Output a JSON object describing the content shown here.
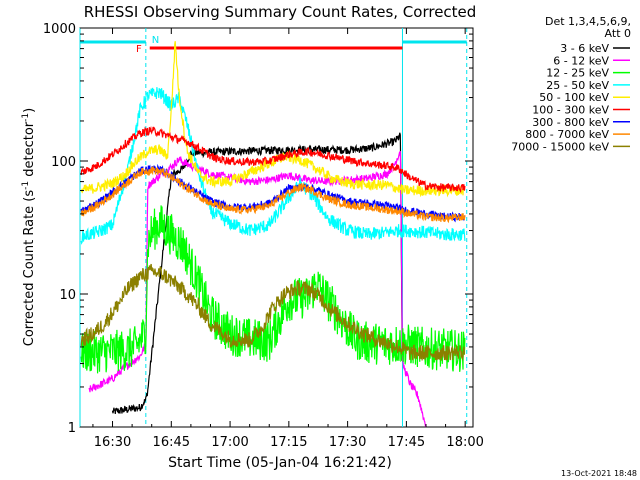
{
  "chart_data": {
    "type": "line",
    "title": "RHESSI Observing Summary Count Rates, Corrected",
    "xlabel": "Start Time (05-Jan-04 16:21:42)",
    "ylabel_main": "Corrected Count Rate (s",
    "ylabel_sup1": "-1",
    "ylabel_mid": " detector",
    "ylabel_sup2": "-1",
    "ylabel_end": ")",
    "yscale": "log",
    "ylim": [
      1,
      1000
    ],
    "xlim": [
      "16:21:42",
      "18:02:00"
    ],
    "xlim_minutes": [
      981.7,
      1082.0
    ],
    "x_ticks": [
      "16:30",
      "16:45",
      "17:00",
      "17:15",
      "17:30",
      "17:45",
      "18:00"
    ],
    "x_tick_minutes": [
      990,
      1005,
      1020,
      1035,
      1050,
      1065,
      1080
    ],
    "y_ticks": [
      "1",
      "10",
      "100",
      "1000"
    ],
    "y_tick_values": [
      1,
      10,
      100,
      1000
    ],
    "legend_placement": "right",
    "legend_header_line1": "Det 1,3,4,5,6,9,",
    "legend_header_line2": "Att 0",
    "timestamp": "13-Oct-2021 18:48",
    "flags": [
      {
        "label": "F",
        "color": "#ff0000",
        "start_min": 983.0,
        "end_min": 1064.0
      },
      {
        "label": "N",
        "color": "#00e5ee",
        "start_min": 981.7,
        "end_min": 1082.0
      }
    ],
    "series": [
      {
        "name": "3 - 6 keV",
        "color": "#000000",
        "times": [
          990,
          997,
          998.5,
          999,
          1005,
          1008,
          1010,
          1020,
          1030,
          1040,
          1050,
          1056,
          1062,
          1063.5,
          1064
        ],
        "values": [
          1.3,
          1.4,
          1.6,
          1.9,
          78,
          88,
          115,
          118,
          120,
          122,
          121,
          125,
          140,
          155,
          1.6
        ]
      },
      {
        "name": "6 - 12 keV",
        "color": "#ff00ff",
        "times": [
          984,
          990,
          993,
          997,
          998.5,
          999,
          1003,
          1005,
          1007,
          1009,
          1015,
          1020,
          1025,
          1030,
          1035,
          1040,
          1045,
          1050,
          1055,
          1060,
          1062,
          1063.5,
          1064,
          1066,
          1068,
          1070
        ],
        "values": [
          1.9,
          2.3,
          2.8,
          3.4,
          4.2,
          65,
          82,
          90,
          103,
          95,
          80,
          75,
          70,
          72,
          78,
          72,
          70,
          72,
          74,
          80,
          95,
          120,
          3.0,
          2.1,
          1.7,
          1.0
        ]
      },
      {
        "name": "12 - 25 keV",
        "color": "#00ff00",
        "times": [
          982,
          990,
          994,
          996,
          998.5,
          999,
          1000,
          1002,
          1005,
          1008,
          1012,
          1015,
          1020,
          1025,
          1030,
          1032,
          1035,
          1040,
          1042,
          1045,
          1050,
          1052,
          1055,
          1060,
          1064,
          1070,
          1076,
          1080
        ],
        "values": [
          3.6,
          3.7,
          3.8,
          4.0,
          5.2,
          24,
          29,
          34,
          28,
          23,
          12,
          7.0,
          5.0,
          4.6,
          4.4,
          6.0,
          9.0,
          9.5,
          12,
          9.0,
          5.5,
          4.6,
          4.3,
          4.2,
          4.2,
          3.9,
          3.8,
          3.7
        ]
      },
      {
        "name": "25 - 50 keV",
        "color": "#00ffff",
        "times": [
          982,
          986,
          990,
          994,
          997,
          999,
          1002,
          1005,
          1007,
          1009,
          1012,
          1015,
          1020,
          1025,
          1030,
          1035,
          1038,
          1041,
          1045,
          1050,
          1055,
          1060,
          1063,
          1065,
          1070,
          1075,
          1080
        ],
        "values": [
          27,
          29,
          33,
          90,
          240,
          310,
          330,
          260,
          300,
          190,
          80,
          42,
          34,
          30,
          33,
          53,
          68,
          55,
          37,
          30,
          28,
          29,
          30,
          30,
          29,
          28,
          28
        ]
      },
      {
        "name": "50 - 100 keV",
        "color": "#ffee00",
        "times": [
          982,
          986,
          990,
          993,
          996,
          999,
          1002,
          1004,
          1005,
          1006,
          1007,
          1009,
          1012,
          1015,
          1020,
          1025,
          1030,
          1034,
          1038,
          1042,
          1046,
          1050,
          1055,
          1060,
          1063,
          1065,
          1070,
          1075,
          1080
        ],
        "values": [
          60,
          63,
          68,
          78,
          100,
          118,
          122,
          108,
          240,
          800,
          310,
          120,
          80,
          70,
          70,
          82,
          96,
          108,
          102,
          88,
          74,
          68,
          66,
          66,
          62,
          60,
          60,
          60,
          60
        ]
      },
      {
        "name": "100 - 300 keV",
        "color": "#ff0000",
        "times": [
          982,
          986,
          990,
          994,
          997,
          1000,
          1003,
          1006,
          1009,
          1012,
          1016,
          1020,
          1025,
          1030,
          1035,
          1040,
          1045,
          1050,
          1055,
          1060,
          1063,
          1066,
          1070,
          1075,
          1080
        ],
        "values": [
          82,
          92,
          112,
          140,
          162,
          170,
          160,
          148,
          140,
          125,
          105,
          100,
          98,
          100,
          112,
          118,
          110,
          102,
          96,
          92,
          88,
          75,
          65,
          63,
          63
        ]
      },
      {
        "name": "300 - 800 keV",
        "color": "#0000ff",
        "times": [
          982,
          986,
          990,
          994,
          997,
          1000,
          1003,
          1006,
          1010,
          1015,
          1020,
          1025,
          1030,
          1035,
          1040,
          1045,
          1050,
          1055,
          1060,
          1063,
          1066,
          1070,
          1075,
          1080
        ],
        "values": [
          42,
          48,
          58,
          72,
          84,
          88,
          84,
          74,
          62,
          50,
          45,
          45,
          48,
          62,
          64,
          56,
          50,
          48,
          46,
          44,
          42,
          40,
          38,
          38
        ]
      },
      {
        "name": "800 - 7000 keV",
        "color": "#ff8800",
        "times": [
          982,
          986,
          990,
          994,
          997,
          1000,
          1003,
          1006,
          1010,
          1015,
          1020,
          1025,
          1030,
          1035,
          1038,
          1041,
          1045,
          1050,
          1055,
          1060,
          1063,
          1066,
          1070,
          1075,
          1080
        ],
        "values": [
          40,
          46,
          56,
          70,
          82,
          86,
          82,
          72,
          60,
          48,
          43,
          43,
          46,
          58,
          64,
          60,
          52,
          47,
          45,
          43,
          42,
          40,
          38,
          37,
          38
        ]
      },
      {
        "name": "7000 - 15000 keV",
        "color": "#8b8000",
        "times": [
          982,
          985,
          988,
          991,
          994,
          997,
          1000,
          1003,
          1006,
          1009,
          1012,
          1015,
          1020,
          1025,
          1028,
          1031,
          1034,
          1037,
          1040,
          1043,
          1046,
          1050,
          1054,
          1058,
          1063,
          1066,
          1070,
          1075,
          1080
        ],
        "values": [
          4.5,
          5.0,
          6.0,
          8.0,
          11,
          13.5,
          14.8,
          14,
          12,
          10,
          8.0,
          6.0,
          4.6,
          4.5,
          5.5,
          8.0,
          10,
          11,
          11,
          9.5,
          7.5,
          6.0,
          5.0,
          4.5,
          4.0,
          3.6,
          3.6,
          3.6,
          3.7
        ]
      }
    ]
  }
}
